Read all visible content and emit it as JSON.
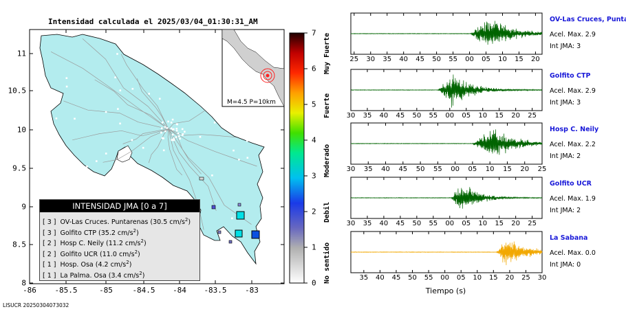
{
  "map": {
    "title": "Intensidad calculada el 2025/03/04_01:30:31_AM",
    "footer_id": "LISUCR 20250304073032",
    "lon_ticks": [
      "-86",
      "-85.5",
      "-85",
      "-84.5",
      "-84",
      "-83.5",
      "-83"
    ],
    "lat_ticks": [
      "11",
      "10.5",
      "10",
      "9.5",
      "9",
      "8.5",
      "8"
    ],
    "inset_caption": "M=4.5 P=10km",
    "land_color": "#b3ecee",
    "sea_color": "#ffffff"
  },
  "colorbar": {
    "ticks": [
      "7",
      "6",
      "5",
      "4",
      "3",
      "2",
      "1",
      "0"
    ],
    "category_labels": [
      "Muy Fuerte",
      "Fuerte",
      "Moderado",
      "Debil",
      "No sentido"
    ]
  },
  "legend": {
    "title": "INTENSIDAD JMA [0 a 7]",
    "rows": [
      {
        "level": "[ 3 ]",
        "text": "OV-Las Cruces. Puntarenas (30.5 cm/s",
        "sup": "2",
        "close": ")"
      },
      {
        "level": "[ 3 ]",
        "text": "Golfito CTP (35.2 cm/s",
        "sup": "2",
        "close": ")"
      },
      {
        "level": "[ 2 ]",
        "text": "Hosp C. Neily (11.2 cm/s",
        "sup": "2",
        "close": ")"
      },
      {
        "level": "[ 2 ]",
        "text": "Golfito UCR (11.0 cm/s",
        "sup": "2",
        "close": ")"
      },
      {
        "level": "[ 1 ]",
        "text": "Hosp. Osa (4.2 cm/s",
        "sup": "2",
        "close": ")"
      },
      {
        "level": "[ 1 ]",
        "text": "La Palma. Osa (3.4 cm/s",
        "sup": "2",
        "close": ")"
      }
    ]
  },
  "chart_data": {
    "type": "line",
    "xlabel": "Tiempo (s)",
    "x_unit": "seconds (clock, mod 60)",
    "stations": [
      {
        "name": "OV-Las Cruces, Puntar",
        "acel": "Acel. Max. 2.9",
        "int": "Int JMA: 3",
        "color": "#006400",
        "ticks": [
          "25",
          "30",
          "35",
          "40",
          "45",
          "50",
          "55",
          "00",
          "05",
          "10",
          "15",
          "20"
        ],
        "tick_start": 25,
        "range": [
          24,
          82
        ],
        "onset": 60.3,
        "peak": 66,
        "decay": 7
      },
      {
        "name": "Golfito CTP",
        "acel": "Acel. Max. 2.9",
        "int": "Int JMA: 3",
        "color": "#006400",
        "ticks": [
          "30",
          "35",
          "40",
          "45",
          "50",
          "55",
          "00",
          "05",
          "10",
          "15",
          "20",
          "25"
        ],
        "tick_start": 30,
        "range": [
          30,
          88
        ],
        "onset": 56.5,
        "peak": 60.5,
        "decay": 6
      },
      {
        "name": "Hosp C. Neily",
        "acel": "Acel. Max. 2.2",
        "int": "Int JMA: 2",
        "color": "#006400",
        "ticks": [
          "30",
          "35",
          "40",
          "45",
          "50",
          "55",
          "00",
          "05",
          "10",
          "15",
          "20",
          "25"
        ],
        "tick_start": 30,
        "range": [
          30,
          85
        ],
        "onset": 65,
        "peak": 71,
        "decay": 6
      },
      {
        "name": "Golfito UCR",
        "acel": "Acel. Max. 1.9",
        "int": "Int JMA: 2",
        "color": "#006400",
        "ticks": [
          "30",
          "35",
          "40",
          "45",
          "50",
          "55",
          "00",
          "05",
          "10",
          "15",
          "20",
          "25"
        ],
        "tick_start": 30,
        "range": [
          30,
          88
        ],
        "onset": 60.5,
        "peak": 63.5,
        "decay": 5
      },
      {
        "name": "La Sabana",
        "acel": "Acel. Max. 0.0",
        "int": "Int JMA: 0",
        "color": "#f2a800",
        "ticks": [
          "35",
          "40",
          "45",
          "50",
          "55",
          "00",
          "05",
          "10",
          "15",
          "20",
          "25",
          "30"
        ],
        "tick_start": 35,
        "range": [
          31,
          90
        ],
        "onset": 76,
        "peak": 79,
        "decay": 6
      }
    ]
  }
}
